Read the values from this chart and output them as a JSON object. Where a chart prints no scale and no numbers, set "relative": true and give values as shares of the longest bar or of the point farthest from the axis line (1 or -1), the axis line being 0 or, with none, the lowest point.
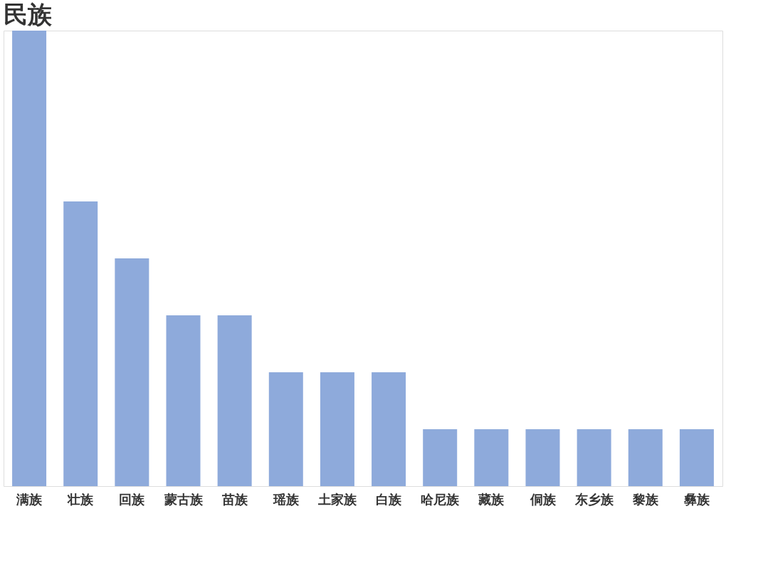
{
  "chart_data": {
    "type": "bar",
    "title": "民族",
    "relative": true,
    "categories": [
      "满族",
      "壮族",
      "回族",
      "蒙古族",
      "苗族",
      "瑶族",
      "土家族",
      "白族",
      "哈尼族",
      "藏族",
      "侗族",
      "东乡族",
      "黎族",
      "彝族"
    ],
    "values": [
      1,
      0.625,
      0.5,
      0.375,
      0.375,
      0.25,
      0.25,
      0.25,
      0.125,
      0.125,
      0.125,
      0.125,
      0.125,
      0.125
    ],
    "color": "#8eaadb",
    "grid": false
  }
}
